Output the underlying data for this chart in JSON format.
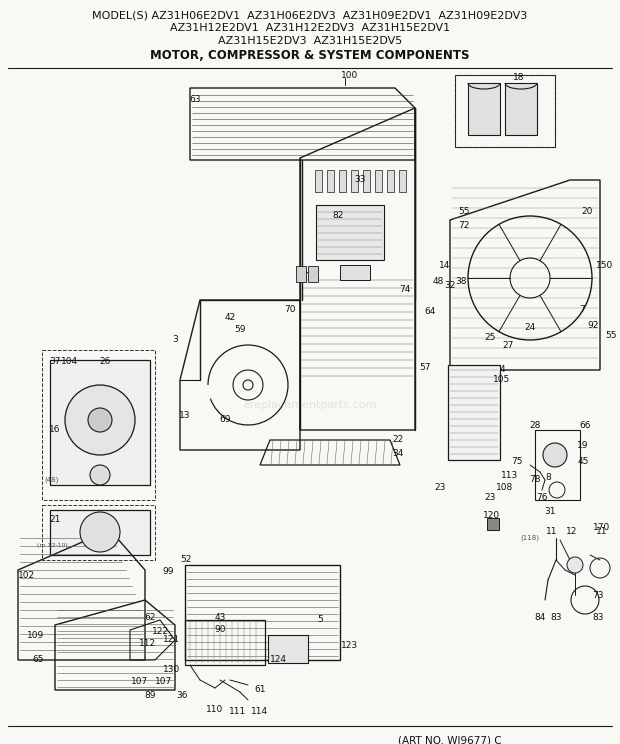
{
  "title_lines": [
    "MODEL(S) AZ31H06E2DV1  AZ31H06E2DV3  AZ31H09E2DV1  AZ31H09E2DV3",
    "AZ31H12E2DV1  AZ31H12E2DV3  AZ31H15E2DV1",
    "AZ31H15E2DV3  AZ31H15E2DV5",
    "MOTOR, COMPRESSOR & SYSTEM COMPONENTS"
  ],
  "footer": "(ART NO. WJ9677) C",
  "watermark": "ereplacementparts.com",
  "bg_color": "#f5f5f0",
  "line_color": "#1a1a1a",
  "title_fontsize": 7.8,
  "subtitle_fontsize": 8.0,
  "fig_width": 6.2,
  "fig_height": 7.44,
  "dpi": 100
}
